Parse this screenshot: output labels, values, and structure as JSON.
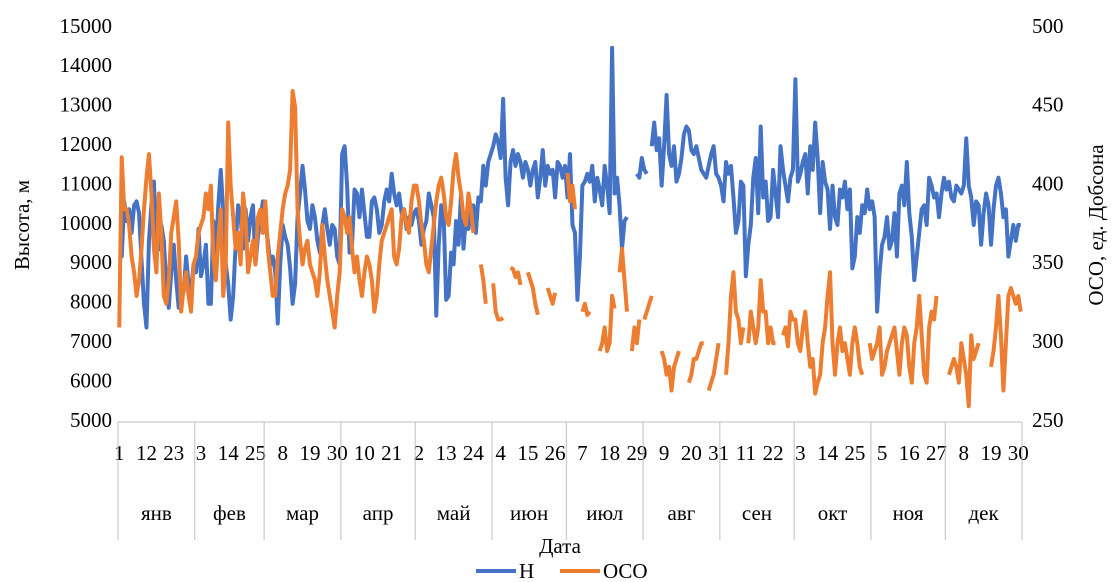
{
  "chart_data": {
    "type": "line",
    "y_label": "Высота, м",
    "y2_label": "ОСО, ед. Добсона",
    "x_label": "Дата",
    "ylim": [
      5000,
      15000
    ],
    "yticks": [
      5000,
      6000,
      7000,
      8000,
      9000,
      10000,
      11000,
      12000,
      13000,
      14000,
      15000
    ],
    "y2lim": [
      250,
      500
    ],
    "y2ticks": [
      250,
      300,
      350,
      400,
      450,
      500
    ],
    "legend": "bottom",
    "grid": false,
    "month_groups": [
      {
        "label": "янв",
        "days": 31
      },
      {
        "label": "фев",
        "days": 28
      },
      {
        "label": "мар",
        "days": 31
      },
      {
        "label": "апр",
        "days": 30
      },
      {
        "label": "май",
        "days": 31
      },
      {
        "label": "июн",
        "days": 30
      },
      {
        "label": "июл",
        "days": 31
      },
      {
        "label": "авг",
        "days": 31
      },
      {
        "label": "сен",
        "days": 30
      },
      {
        "label": "окт",
        "days": 31
      },
      {
        "label": "ноя",
        "days": 30
      },
      {
        "label": "дек",
        "days": 31
      }
    ],
    "categories": [
      "1",
      null,
      null,
      null,
      null,
      null,
      null,
      null,
      null,
      null,
      null,
      "12",
      null,
      null,
      null,
      null,
      null,
      null,
      null,
      null,
      null,
      null,
      "23",
      null,
      null,
      null,
      null,
      null,
      null,
      null,
      null,
      null,
      null,
      "3",
      null,
      null,
      null,
      null,
      null,
      null,
      null,
      null,
      null,
      null,
      "14",
      null,
      null,
      null,
      null,
      null,
      null,
      null,
      null,
      null,
      null,
      "25",
      null,
      null,
      null,
      null,
      null,
      null,
      null,
      null,
      null,
      null,
      "8",
      null,
      null,
      null,
      null,
      null,
      null,
      null,
      null,
      null,
      null,
      "19",
      null,
      null,
      null,
      null,
      null,
      null,
      null,
      null,
      null,
      null,
      "30",
      null,
      null,
      null,
      null,
      null,
      null,
      null,
      null,
      null,
      null,
      "10",
      null,
      null,
      null,
      null,
      null,
      null,
      null,
      null,
      null,
      null,
      "21",
      null,
      null,
      null,
      null,
      null,
      null,
      null,
      null,
      null,
      null,
      "2",
      null,
      null,
      null,
      null,
      null,
      null,
      null,
      null,
      null,
      null,
      "13",
      null,
      null,
      null,
      null,
      null,
      null,
      null,
      null,
      null,
      null,
      "24",
      null,
      null,
      null,
      null,
      null,
      null,
      null,
      null,
      null,
      null,
      "4",
      null,
      null,
      null,
      null,
      null,
      null,
      null,
      null,
      null,
      null,
      "15",
      null,
      null,
      null,
      null,
      null,
      null,
      null,
      null,
      null,
      null,
      "26",
      null,
      null,
      null,
      null,
      null,
      null,
      null,
      null,
      null,
      null,
      "7",
      null,
      null,
      null,
      null,
      null,
      null,
      null,
      null,
      null,
      null,
      "18",
      null,
      null,
      null,
      null,
      null,
      null,
      null,
      null,
      null,
      null,
      "29",
      null,
      null,
      null,
      null,
      null,
      null,
      null,
      null,
      null,
      null,
      "9",
      null,
      null,
      null,
      null,
      null,
      null,
      null,
      null,
      null,
      null,
      "20",
      null,
      null,
      null,
      null,
      null,
      null,
      null,
      null,
      null,
      null,
      "31",
      null,
      null,
      null,
      null,
      null,
      null,
      null,
      null,
      null,
      null,
      "11",
      null,
      null,
      null,
      null,
      null,
      null,
      null,
      null,
      null,
      null,
      "22",
      null,
      null,
      null,
      null,
      null,
      null,
      null,
      null,
      null,
      null,
      "3",
      null,
      null,
      null,
      null,
      null,
      null,
      null,
      null,
      null,
      null,
      "14",
      null,
      null,
      null,
      null,
      null,
      null,
      null,
      null,
      null,
      null,
      "25",
      null,
      null,
      null,
      null,
      null,
      null,
      null,
      null,
      null,
      null,
      "5",
      null,
      null,
      null,
      null,
      null,
      null,
      null,
      null,
      null,
      null,
      "16",
      null,
      null,
      null,
      null,
      null,
      null,
      null,
      null,
      null,
      null,
      "27",
      null,
      null,
      null,
      null,
      null,
      null,
      null,
      null,
      null,
      null,
      "8",
      null,
      null,
      null,
      null,
      null,
      null,
      null,
      null,
      null,
      null,
      "19",
      null,
      null,
      null,
      null,
      null,
      null,
      null,
      null,
      null,
      null,
      "30",
      null
    ],
    "series": [
      {
        "name": "Н",
        "color": "#4472c4",
        "values": [
          9200,
          9200,
          10600,
          10100,
          10400,
          9800,
          10500,
          10600,
          10300,
          9100,
          8000,
          7400,
          9600,
          10500,
          11100,
          9300,
          9400,
          10000,
          9600,
          8500,
          7900,
          8800,
          9500,
          8600,
          7900,
          8500,
          8300,
          9200,
          8500,
          8300,
          9000,
          8800,
          9900,
          8700,
          9000,
          9500,
          8000,
          8000,
          10100,
          9200,
          10500,
          11400,
          10300,
          9000,
          8500,
          7600,
          8200,
          9500,
          10500,
          10200,
          9400,
          10400,
          9600,
          10200,
          10500,
          9000,
          9700,
          10200,
          10600,
          10000,
          9600,
          9000,
          9200,
          8800,
          7500,
          9000,
          10000,
          9700,
          9500,
          8900,
          8000,
          8500,
          10200,
          10800,
          11500,
          10900,
          10100,
          9900,
          10500,
          10200,
          9600,
          9300,
          10000,
          10400,
          9900,
          9500,
          10000,
          9900,
          9200,
          9000,
          11800,
          12000,
          11000,
          9300,
          9500,
          10900,
          10800,
          10200,
          10900,
          10300,
          9700,
          9700,
          10600,
          10700,
          10400,
          9800,
          10000,
          10600,
          10900,
          10600,
          11300,
          10800,
          10500,
          10800,
          10300,
          10400,
          9900,
          10200,
          10000,
          10300,
          10400,
          10100,
          9500,
          9900,
          10100,
          10800,
          10500,
          10200,
          7700,
          9500,
          10500,
          10200,
          8100,
          8200,
          9300,
          9000,
          10100,
          9500,
          10800,
          9400,
          10200,
          9900,
          10400,
          10500,
          9800,
          10700,
          10600,
          11500,
          11000,
          11600,
          11800,
          12000,
          12300,
          12100,
          11700,
          13200,
          11200,
          10500,
          11600,
          11900,
          11500,
          11800,
          11600,
          11200,
          11600,
          11400,
          11000,
          11400,
          11600,
          10700,
          11200,
          11900,
          11000,
          11500,
          11300,
          11400,
          10700,
          11600,
          11500,
          11200,
          11500,
          10700,
          11800,
          10000,
          9800,
          8100,
          9200,
          11000,
          11100,
          11300,
          11100,
          11500,
          10600,
          11200,
          10900,
          10500,
          11500,
          11000,
          10300,
          14500,
          10800,
          11200,
          10500,
          9400,
          10100,
          10200,
          null,
          null,
          null,
          11300,
          11200,
          11700,
          11400,
          11300,
          null,
          12000,
          12600,
          11900,
          12200,
          11000,
          12000,
          13300,
          11800,
          11500,
          12000,
          11100,
          11300,
          11700,
          12300,
          12500,
          12400,
          11900,
          11800,
          12000,
          11700,
          11400,
          11300,
          11200,
          11500,
          11800,
          12000,
          11300,
          11200,
          11000,
          10600,
          11600,
          11300,
          11500,
          10700,
          9800,
          10100,
          11100,
          11000,
          8700,
          9500,
          10000,
          11200,
          11700,
          10300,
          12500,
          10700,
          11100,
          10100,
          10200,
          11400,
          10800,
          10200,
          12000,
          11400,
          11000,
          10600,
          11200,
          11400,
          13700,
          11100,
          11300,
          11600,
          11800,
          10800,
          12000,
          11400,
          12600,
          11700,
          10300,
          11600,
          11100,
          10900,
          9900,
          11000,
          10200,
          10000,
          10900,
          10700,
          11100,
          10400,
          10900,
          8900,
          9200,
          10200,
          9800,
          10500,
          10300,
          10900,
          10400,
          10600,
          10200,
          7800,
          8800,
          9500,
          9700,
          10200,
          9400,
          9600,
          10300,
          9200,
          10800,
          11000,
          10500,
          11600,
          10300,
          9700,
          8600,
          9200,
          9800,
          10400,
          10500,
          10000,
          11200,
          11000,
          10700,
          10800,
          10200,
          10800,
          11200,
          10900,
          11100,
          10700,
          10600,
          11000,
          10900,
          10800,
          11000,
          12200,
          11000,
          10700,
          10000,
          10600,
          10500,
          9500,
          10300,
          10800,
          10500,
          9500,
          10400,
          11000,
          11200,
          10800,
          10200,
          10400,
          9200,
          9600,
          10000,
          9600,
          10000,
          10000
        ]
      },
      {
        "name": "ОСО",
        "color": "#ed7d31",
        "axis": "y2",
        "values": [
          310,
          418,
          385,
          385,
          375,
          355,
          345,
          330,
          340,
          360,
          385,
          405,
          420,
          395,
          360,
          345,
          395,
          370,
          330,
          325,
          340,
          370,
          380,
          390,
          365,
          320,
          335,
          345,
          330,
          320,
          350,
          355,
          370,
          375,
          380,
          395,
          385,
          400,
          355,
          340,
          365,
          385,
          330,
          350,
          440,
          400,
          380,
          360,
          370,
          350,
          395,
          380,
          345,
          355,
          365,
          350,
          380,
          385,
          370,
          390,
          360,
          345,
          330,
          330,
          355,
          370,
          385,
          395,
          400,
          410,
          460,
          450,
          385,
          365,
          350,
          360,
          365,
          350,
          345,
          340,
          330,
          345,
          375,
          355,
          340,
          330,
          320,
          310,
          330,
          345,
          385,
          380,
          370,
          380,
          360,
          345,
          355,
          340,
          330,
          345,
          355,
          350,
          340,
          320,
          330,
          350,
          365,
          370,
          375,
          380,
          385,
          355,
          350,
          360,
          380,
          385,
          375,
          370,
          390,
          400,
          400,
          390,
          375,
          365,
          350,
          345,
          360,
          375,
          390,
          400,
          405,
          395,
          380,
          375,
          390,
          410,
          420,
          405,
          395,
          380,
          375,
          395,
          385,
          370,
          null,
          null,
          350,
          340,
          325,
          null,
          null,
          338,
          320,
          315,
          315,
          316,
          null,
          null,
          348,
          347,
          342,
          345,
          337,
          null,
          null,
          345,
          340,
          335,
          325,
          318,
          null,
          null,
          null,
          335,
          330,
          325,
          332,
          null,
          null,
          null,
          null,
          408,
          390,
          400,
          385,
          null,
          null,
          320,
          325,
          318,
          320,
          null,
          null,
          null,
          295,
          300,
          310,
          295,
          300,
          330,
          322,
          null,
          345,
          360,
          340,
          320,
          null,
          295,
          310,
          300,
          315,
          null,
          315,
          320,
          325,
          330,
          null,
          null,
          null,
          295,
          290,
          280,
          285,
          270,
          285,
          290,
          295,
          null,
          null,
          null,
          275,
          280,
          290,
          290,
          295,
          300,
          300,
          null,
          270,
          275,
          280,
          290,
          300,
          null,
          null,
          280,
          300,
          330,
          345,
          320,
          315,
          300,
          310,
          null,
          300,
          320,
          310,
          300,
          310,
          340,
          320,
          320,
          300,
          310,
          300,
          300,
          null,
          null,
          305,
          310,
          298,
          320,
          315,
          315,
          300,
          295,
          310,
          320,
          300,
          285,
          290,
          268,
          275,
          280,
          300,
          310,
          330,
          345,
          300,
          280,
          300,
          310,
          295,
          300,
          290,
          280,
          300,
          310,
          300,
          285,
          280,
          null,
          null,
          300,
          290,
          295,
          300,
          310,
          280,
          285,
          295,
          300,
          305,
          310,
          295,
          280,
          300,
          310,
          305,
          285,
          275,
          300,
          310,
          330,
          305,
          280,
          275,
          310,
          320,
          315,
          330,
          null,
          null,
          null,
          null,
          280,
          285,
          290,
          285,
          275,
          300,
          290,
          280,
          260,
          305,
          290,
          295,
          300,
          null,
          null,
          null,
          null,
          285,
          295,
          310,
          330,
          305,
          270,
          300,
          330,
          335,
          330,
          325,
          330,
          320
        ]
      }
    ]
  }
}
